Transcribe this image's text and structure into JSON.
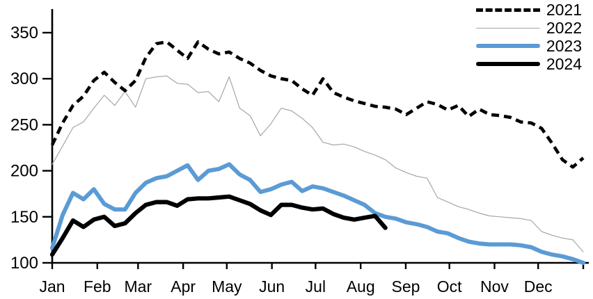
{
  "chart_data": {
    "type": "line",
    "title": "",
    "xlabel": "",
    "ylabel": "",
    "x_unit": "weekly observations, Jan through Dec",
    "n_points": 52,
    "x_axis": {
      "tick_labels": [
        "Jan",
        "Feb",
        "Mar",
        "Apr",
        "May",
        "Jun",
        "Jul",
        "Aug",
        "Sep",
        "Oct",
        "Nov",
        "Dec"
      ],
      "grid": false
    },
    "y_axis": {
      "ticks": [
        100,
        150,
        200,
        250,
        300,
        350
      ],
      "tick_labels": [
        "100",
        "150",
        "200",
        "250",
        "300",
        "350"
      ],
      "ylim": [
        100,
        360
      ],
      "grid": false
    },
    "legend": {
      "position": "top-right",
      "entries": [
        "2021",
        "2022",
        "2023",
        "2024"
      ]
    },
    "series": [
      {
        "name": "2021",
        "color": "#000000",
        "line_style": "dashed",
        "line_width": 4.6,
        "values": [
          228,
          252,
          271,
          281,
          298,
          307,
          296,
          287,
          298,
          323,
          338,
          340,
          331,
          322,
          340,
          332,
          327,
          329,
          322,
          317,
          309,
          303,
          300,
          298,
          289,
          282,
          300,
          285,
          280,
          276,
          273,
          270,
          269,
          267,
          261,
          268,
          275,
          272,
          266,
          271,
          259,
          267,
          261,
          260,
          258,
          253,
          252,
          246,
          230,
          212,
          204,
          214
        ]
      },
      {
        "name": "2022",
        "color": "#a6a6a6",
        "line_style": "solid",
        "line_width": 1.2,
        "values": [
          207,
          227,
          247,
          253,
          268,
          282,
          271,
          286,
          269,
          300,
          302,
          303,
          295,
          294,
          285,
          286,
          275,
          302,
          268,
          260,
          238,
          251,
          268,
          265,
          257,
          247,
          231,
          228,
          229,
          226,
          221,
          217,
          212,
          203,
          198,
          194,
          192,
          171,
          166,
          161,
          158,
          154,
          151,
          150,
          149,
          148,
          146,
          134,
          130,
          127,
          125,
          112
        ]
      },
      {
        "name": "2023",
        "color": "#5b9bd5",
        "line_style": "solid",
        "line_width": 6,
        "values": [
          116,
          152,
          176,
          169,
          180,
          164,
          158,
          158,
          176,
          187,
          192,
          194,
          200,
          206,
          190,
          200,
          202,
          207,
          196,
          190,
          177,
          180,
          185,
          188,
          178,
          183,
          181,
          177,
          173,
          168,
          163,
          154,
          150,
          148,
          144,
          142,
          139,
          134,
          132,
          127,
          123,
          121,
          120,
          120,
          120,
          119,
          117,
          112,
          109,
          107,
          104,
          100
        ]
      },
      {
        "name": "2024",
        "color": "#000000",
        "line_style": "solid",
        "line_width": 6.2,
        "values": [
          109,
          127,
          146,
          139,
          147,
          150,
          140,
          143,
          154,
          163,
          166,
          166,
          162,
          169,
          170,
          170,
          171,
          172,
          168,
          164,
          157,
          152,
          163,
          163,
          160,
          158,
          159,
          153,
          149,
          147,
          149,
          151,
          138
        ]
      }
    ]
  }
}
